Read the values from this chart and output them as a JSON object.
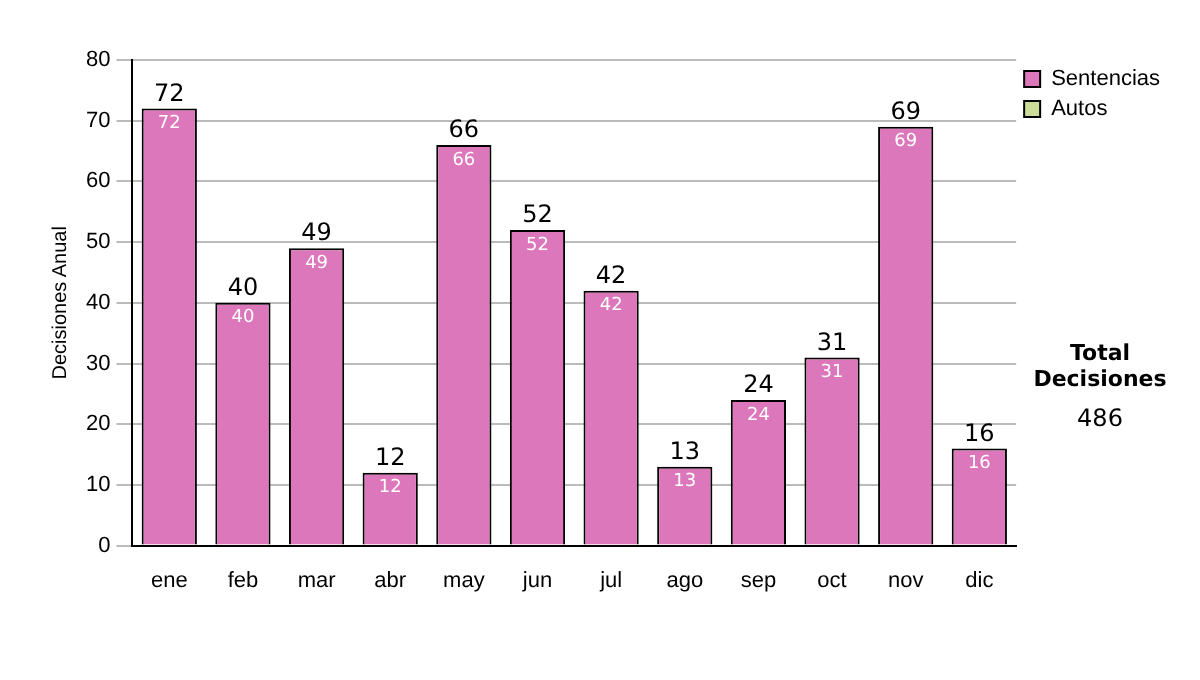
{
  "chart_data": {
    "type": "bar",
    "ylabel": "Decisiones Anual",
    "categories": [
      "ene",
      "feb",
      "mar",
      "abr",
      "may",
      "jun",
      "jul",
      "ago",
      "sep",
      "oct",
      "nov",
      "dic"
    ],
    "series": [
      {
        "name": "Sentencias",
        "color": "#dd77bb",
        "values": [
          72,
          40,
          49,
          12,
          66,
          52,
          42,
          13,
          24,
          31,
          69,
          16
        ],
        "value_labels": [
          "72",
          "40",
          "49",
          "12",
          "66",
          "52",
          "42",
          "13",
          "24",
          "31",
          "69",
          "16"
        ]
      },
      {
        "name": "Autos",
        "color": "#ccdd99",
        "values": [
          0,
          0,
          0,
          0,
          0,
          0,
          0,
          0,
          0,
          0,
          0,
          0
        ]
      }
    ],
    "stacked": true,
    "totals": [
      "72",
      "40",
      "49",
      "12",
      "66",
      "52",
      "42",
      "13",
      "24",
      "31",
      "69",
      "16"
    ],
    "ylim": [
      0,
      80
    ],
    "yticks": [
      0,
      10,
      20,
      30,
      40,
      50,
      60,
      70,
      80
    ],
    "grid": "y",
    "legend": "right",
    "annotations": [
      "Total Decisiones",
      "486"
    ]
  }
}
